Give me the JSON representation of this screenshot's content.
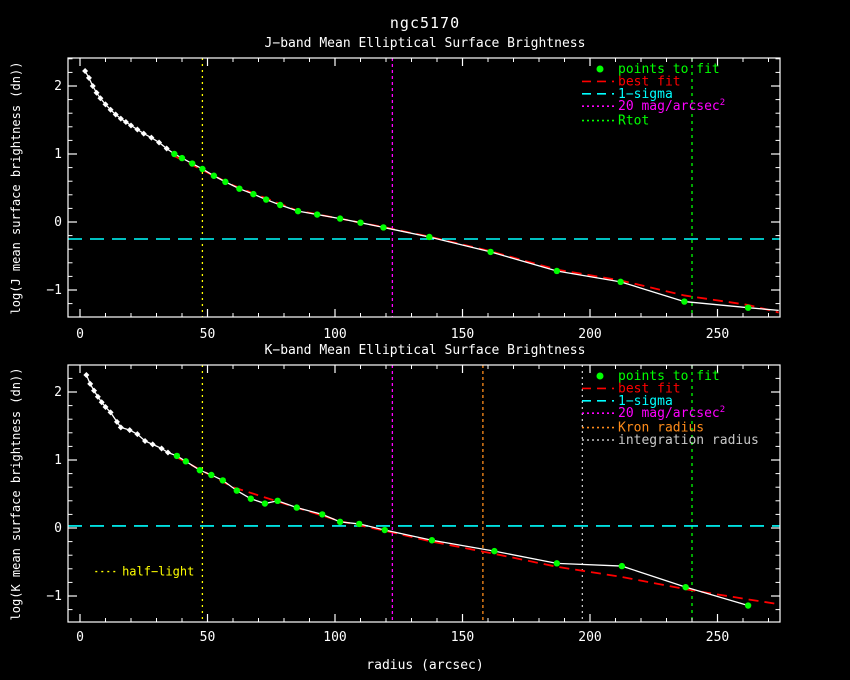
{
  "title": "ngc5170",
  "colors": {
    "background": "#000000",
    "axis": "#ffffff",
    "points_to_fit": "#00ff00",
    "best_fit": "#ff0000",
    "one_sigma": "#00ffff",
    "mag20": "#ff00ff",
    "half_light": "#ffff00",
    "kron_radius": "#ff8c1a",
    "integration_radius": "#c8c8c8",
    "rtot": "#00ff00",
    "data_curve": "#ffffff"
  },
  "chart_data": [
    {
      "type": "line",
      "band": "J",
      "subtitle": "J−band Mean Elliptical Surface Brightness",
      "ylabel": "log(J mean surface brightness (dn))",
      "xlabel": "",
      "xlim": [
        -5,
        274
      ],
      "ylim": [
        -1.4,
        2.41
      ],
      "x_major_ticks": [
        0,
        50,
        100,
        150,
        200,
        250
      ],
      "x_minor_step": 10,
      "y_major_ticks": [
        -1,
        0,
        1,
        2
      ],
      "y_minor_step": 0.2,
      "grid": false,
      "legend_position": "upper_right_inside",
      "curve_points": [
        [
          2,
          2.22
        ],
        [
          3.5,
          2.12
        ],
        [
          5,
          2.0
        ],
        [
          6.5,
          1.9
        ],
        [
          8,
          1.82
        ],
        [
          10,
          1.73
        ],
        [
          12,
          1.65
        ],
        [
          14,
          1.58
        ],
        [
          16,
          1.52
        ],
        [
          18,
          1.47
        ],
        [
          20,
          1.42
        ],
        [
          22.5,
          1.36
        ],
        [
          25,
          1.3
        ],
        [
          28,
          1.24
        ],
        [
          31,
          1.17
        ],
        [
          34,
          1.08
        ],
        [
          37,
          1.0
        ],
        [
          40,
          0.94
        ],
        [
          44,
          0.86
        ],
        [
          48,
          0.78
        ],
        [
          52.5,
          0.68
        ],
        [
          57,
          0.59
        ],
        [
          62.5,
          0.49
        ],
        [
          68,
          0.41
        ],
        [
          73,
          0.33
        ],
        [
          78.5,
          0.25
        ],
        [
          85.5,
          0.16
        ],
        [
          93,
          0.11
        ],
        [
          102,
          0.05
        ],
        [
          110,
          -0.01
        ],
        [
          119,
          -0.08
        ],
        [
          137,
          -0.22
        ],
        [
          161,
          -0.44
        ],
        [
          187,
          -0.72
        ],
        [
          212,
          -0.88
        ],
        [
          237,
          -1.17
        ],
        [
          262,
          -1.26
        ],
        [
          274,
          -1.3
        ]
      ],
      "fit_start_index": 16,
      "tail_unmarked": 1,
      "best_fit": [
        [
          37,
          0.97
        ],
        [
          60,
          0.54
        ],
        [
          85,
          0.17
        ],
        [
          102,
          0.05
        ],
        [
          110,
          -0.01
        ],
        [
          119,
          -0.075
        ],
        [
          137,
          -0.215
        ],
        [
          161,
          -0.43
        ],
        [
          187,
          -0.7
        ],
        [
          212,
          -0.86
        ],
        [
          237,
          -1.08
        ],
        [
          262,
          -1.22
        ],
        [
          274,
          -1.33
        ]
      ],
      "sigma_line": {
        "y": -0.25,
        "color": "#00ffff",
        "label": "1−sigma"
      },
      "vlines": [
        {
          "label": "half-light",
          "x": 48,
          "color": "#ffff00",
          "dash": "2 4"
        },
        {
          "label": "20 mag/arcsec2",
          "x": 122.5,
          "color": "#ff00ff",
          "dash": "3 3"
        },
        {
          "label": "Rtot",
          "x": 240,
          "color": "#00ff00",
          "dash": "3 4"
        }
      ],
      "legend": [
        {
          "label": "points to fit",
          "color": "#00ff00",
          "sample": "dot"
        },
        {
          "label": "best fit",
          "color": "#ff0000",
          "sample": "dash"
        },
        {
          "label": "1−sigma",
          "color": "#00ffff",
          "sample": "dash"
        },
        {
          "label": "20 mag/arcsec",
          "superscript": "2",
          "color": "#ff00ff",
          "sample": "dots"
        },
        {
          "label": "Rtot",
          "color": "#00ff00",
          "sample": "dots"
        }
      ],
      "annotations": []
    },
    {
      "type": "line",
      "band": "K",
      "subtitle": "K−band Mean Elliptical Surface Brightness",
      "ylabel": "log(K mean surface brightness (dn))",
      "xlabel": "radius (arcsec)",
      "xlim": [
        -5,
        274
      ],
      "ylim": [
        -1.38,
        2.4
      ],
      "x_major_ticks": [
        0,
        50,
        100,
        150,
        200,
        250
      ],
      "x_minor_step": 10,
      "y_major_ticks": [
        -1,
        0,
        1,
        2
      ],
      "y_minor_step": 0.2,
      "grid": false,
      "legend_position": "upper_right_inside",
      "curve_points": [
        [
          2.5,
          2.25
        ],
        [
          4,
          2.12
        ],
        [
          5.5,
          2.02
        ],
        [
          7,
          1.93
        ],
        [
          8.5,
          1.85
        ],
        [
          10,
          1.78
        ],
        [
          12,
          1.7
        ],
        [
          14.5,
          1.56
        ],
        [
          16,
          1.48
        ],
        [
          19.5,
          1.44
        ],
        [
          22.5,
          1.38
        ],
        [
          25.5,
          1.28
        ],
        [
          28.5,
          1.23
        ],
        [
          32,
          1.17
        ],
        [
          34.5,
          1.11
        ],
        [
          38,
          1.06
        ],
        [
          41.5,
          0.98
        ],
        [
          47,
          0.85
        ],
        [
          51.5,
          0.78
        ],
        [
          56,
          0.7
        ],
        [
          61.5,
          0.55
        ],
        [
          67,
          0.43
        ],
        [
          72.5,
          0.36
        ],
        [
          77.5,
          0.4
        ],
        [
          85,
          0.3
        ],
        [
          95,
          0.2
        ],
        [
          102,
          0.09
        ],
        [
          109.5,
          0.06
        ],
        [
          119.5,
          -0.03
        ],
        [
          138,
          -0.18
        ],
        [
          162.5,
          -0.34
        ],
        [
          187,
          -0.52
        ],
        [
          212.5,
          -0.56
        ],
        [
          237.5,
          -0.87
        ],
        [
          262,
          -1.14
        ]
      ],
      "fit_start_index": 15,
      "tail_unmarked": 0,
      "best_fit": [
        [
          38,
          1.04
        ],
        [
          60,
          0.6
        ],
        [
          85,
          0.3
        ],
        [
          102,
          0.1
        ],
        [
          119.5,
          -0.04
        ],
        [
          138,
          -0.2
        ],
        [
          162.5,
          -0.38
        ],
        [
          187,
          -0.57
        ],
        [
          212.5,
          -0.72
        ],
        [
          237.5,
          -0.9
        ],
        [
          262,
          -1.05
        ],
        [
          274,
          -1.12
        ]
      ],
      "sigma_line": {
        "y": 0.03,
        "color": "#00ffff",
        "label": "1−sigma"
      },
      "vlines": [
        {
          "label": "half-light",
          "x": 48,
          "color": "#ffff00",
          "dash": "2 4"
        },
        {
          "label": "20 mag/arcsec2",
          "x": 122.5,
          "color": "#ff00ff",
          "dash": "3 3"
        },
        {
          "label": "Kron radius",
          "x": 158,
          "color": "#ff8c1a",
          "dash": "3 3"
        },
        {
          "label": "integration radius",
          "x": 197,
          "color": "#c8c8c8",
          "dash": "2 4"
        },
        {
          "label": "Rtot",
          "x": 240,
          "color": "#00ff00",
          "dash": "3 4"
        }
      ],
      "legend": [
        {
          "label": "points to fit",
          "color": "#00ff00",
          "sample": "dot"
        },
        {
          "label": "best fit",
          "color": "#ff0000",
          "sample": "dash"
        },
        {
          "label": "1−sigma",
          "color": "#00ffff",
          "sample": "dash"
        },
        {
          "label": "20 mag/arcsec",
          "superscript": "2",
          "color": "#ff00ff",
          "sample": "dots"
        },
        {
          "label": "Kron radius",
          "color": "#ff8c1a",
          "sample": "dots"
        },
        {
          "label": "integration radius",
          "color": "#c8c8c8",
          "sample": "dots"
        }
      ],
      "annotations": [
        {
          "text": "half−light",
          "color": "#ffff00",
          "sample": "dots",
          "sample_x1": 6,
          "sample_x2": 14.5,
          "text_x": 16.5,
          "y": -0.7
        }
      ]
    }
  ]
}
